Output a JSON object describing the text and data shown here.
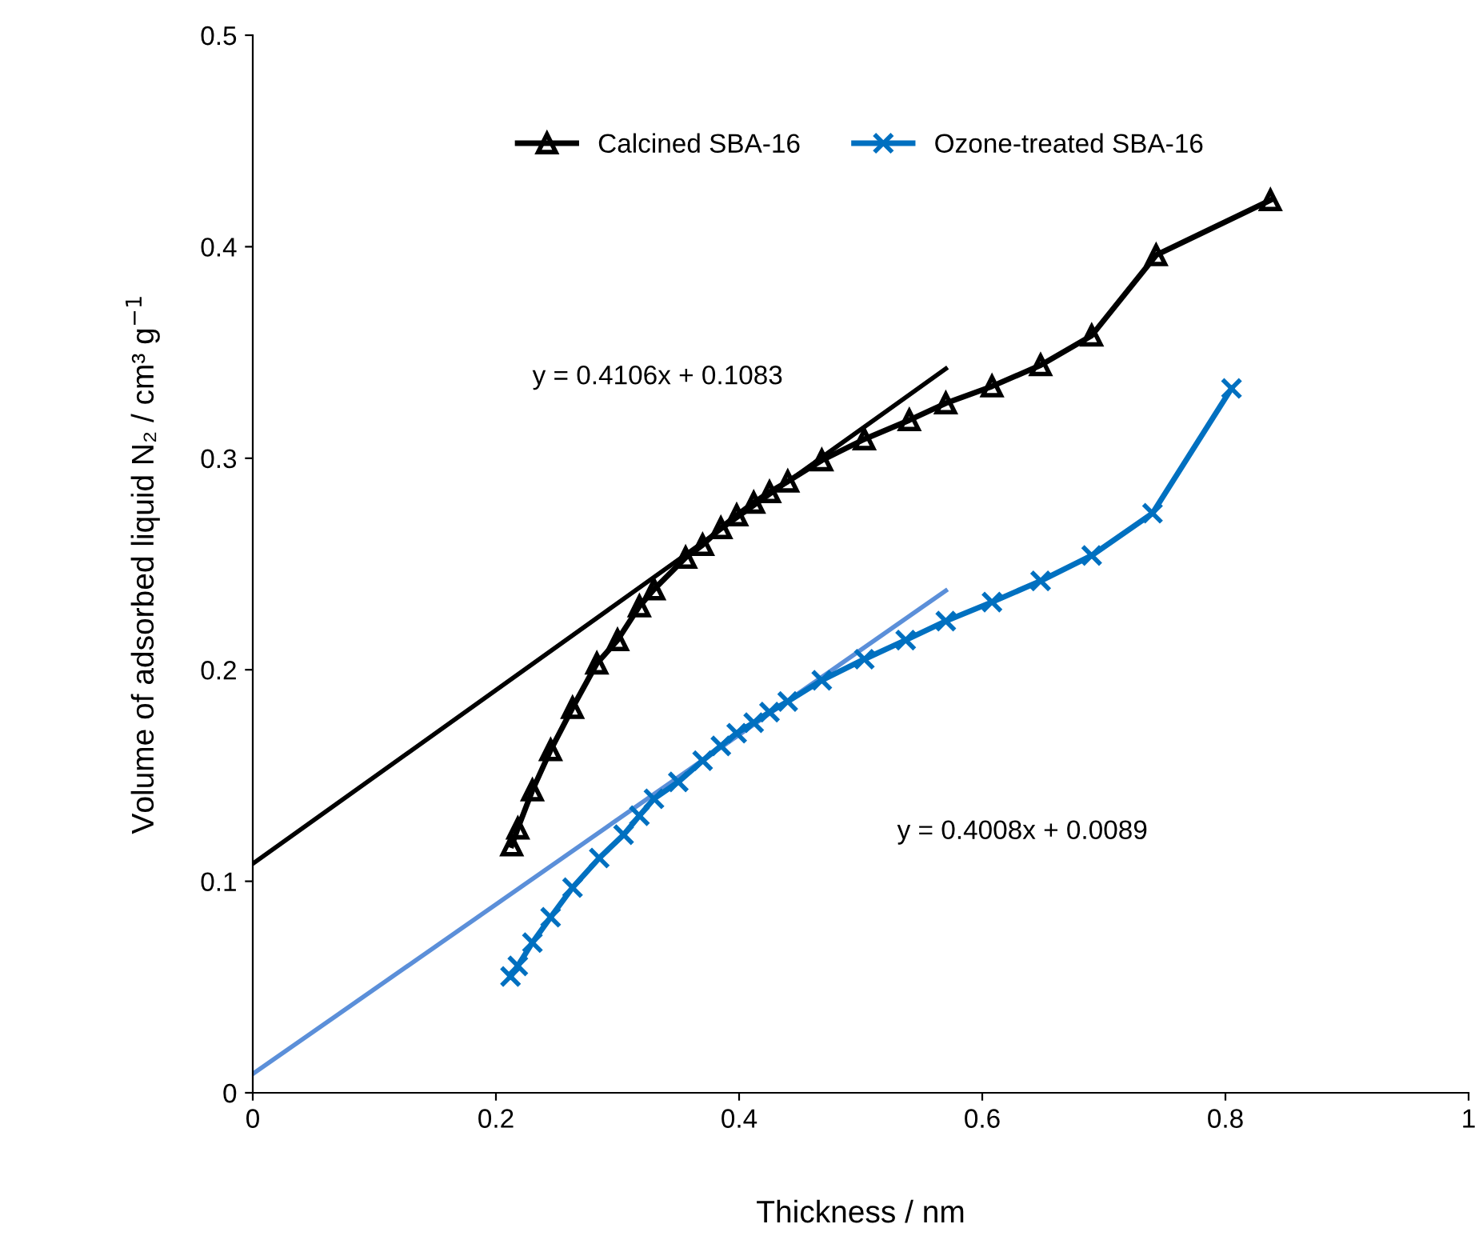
{
  "chart_data": {
    "type": "line",
    "xlabel": "Thickness / nm",
    "ylabel": "Volume of adsorbed liquid N₂ / cm³ g$^{−1}$",
    "xlim": [
      0,
      1
    ],
    "ylim": [
      0,
      0.5
    ],
    "xticks": [
      0,
      0.2,
      0.4,
      0.6,
      0.8,
      1
    ],
    "yticks": [
      0,
      0.1,
      0.2,
      0.3,
      0.4,
      0.5
    ],
    "grid": false,
    "legend": "top",
    "line_style": "solid",
    "series": [
      {
        "name": "Calcined SBA-16",
        "color": "#000000",
        "marker": "triangle",
        "x": [
          0.213,
          0.218,
          0.23,
          0.245,
          0.263,
          0.283,
          0.3,
          0.318,
          0.33,
          0.356,
          0.37,
          0.385,
          0.398,
          0.412,
          0.425,
          0.44,
          0.468,
          0.503,
          0.54,
          0.57,
          0.608,
          0.648,
          0.69,
          0.743,
          0.837
        ],
        "values": [
          0.117,
          0.125,
          0.143,
          0.162,
          0.182,
          0.203,
          0.214,
          0.23,
          0.238,
          0.253,
          0.259,
          0.267,
          0.273,
          0.279,
          0.284,
          0.289,
          0.299,
          0.309,
          0.318,
          0.326,
          0.334,
          0.344,
          0.358,
          0.396,
          0.422
        ]
      },
      {
        "name": "Ozone-treated SBA-16",
        "color": "#0070c0",
        "marker": "cross",
        "x": [
          0.212,
          0.218,
          0.23,
          0.245,
          0.263,
          0.285,
          0.305,
          0.318,
          0.33,
          0.35,
          0.37,
          0.385,
          0.398,
          0.412,
          0.425,
          0.44,
          0.468,
          0.503,
          0.537,
          0.57,
          0.608,
          0.648,
          0.69,
          0.74,
          0.805
        ],
        "values": [
          0.055,
          0.06,
          0.071,
          0.083,
          0.097,
          0.111,
          0.122,
          0.131,
          0.139,
          0.147,
          0.157,
          0.164,
          0.17,
          0.175,
          0.18,
          0.185,
          0.195,
          0.205,
          0.214,
          0.223,
          0.232,
          0.242,
          0.254,
          0.274,
          0.333
        ]
      },
      {
        "type": "line",
        "color": "#000000",
        "marker": "none",
        "x": [
          0,
          0.57
        ],
        "values": [
          0.1083,
          0.3423
        ]
      },
      {
        "type": "line",
        "color": "#5b8fd9",
        "marker": "none",
        "x": [
          0,
          0.57
        ],
        "values": [
          0.0089,
          0.2374
        ]
      }
    ],
    "annotations": [
      "y = 0.4106x + 0.1083",
      "y = 0.4008x + 0.0089"
    ]
  }
}
